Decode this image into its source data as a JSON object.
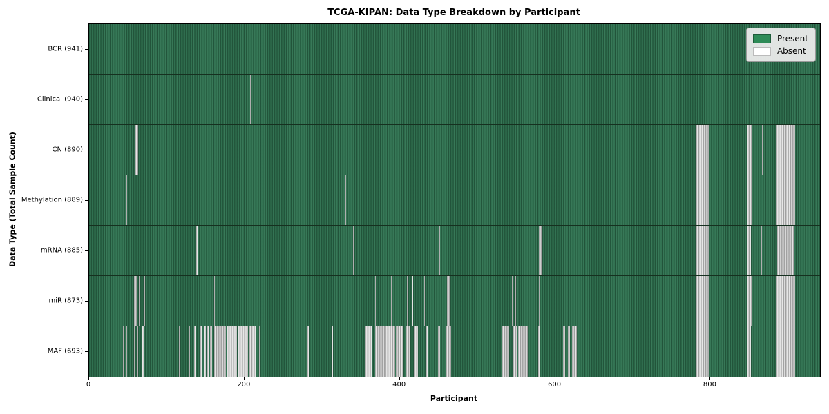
{
  "figure": {
    "background": "#ffffff"
  },
  "legend": {
    "entries": [
      {
        "label": "Present",
        "color": "#2e8b57",
        "border": "#1e5c3a"
      },
      {
        "label": "Absent",
        "color": "#ffffff",
        "border": "#bbbbbb"
      }
    ]
  },
  "chart_data": {
    "type": "heatmap",
    "title": "TCGA-KIPAN: Data Type Breakdown by Participant",
    "xlabel": "Participant",
    "ylabel": "Data Type (Total Sample Count)",
    "x_range": [
      0,
      941
    ],
    "x_ticks": [
      0,
      200,
      400,
      600,
      800
    ],
    "n_participants": 941,
    "grid": false,
    "legend_position": "upper right",
    "colors": {
      "present": "#2e8b57",
      "absent": "#ffffff"
    },
    "rows": [
      {
        "label": "BCR (941)",
        "data_type": "BCR",
        "sample_count": 941,
        "absent_ranges": []
      },
      {
        "label": "Clinical (940)",
        "data_type": "Clinical",
        "sample_count": 940,
        "absent_ranges": [
          [
            207,
            208
          ]
        ]
      },
      {
        "label": "CN (890)",
        "data_type": "CN",
        "sample_count": 890,
        "absent_ranges": [
          [
            60,
            63
          ],
          [
            617,
            618
          ],
          [
            782,
            799
          ],
          [
            847,
            854
          ],
          [
            866,
            867
          ],
          [
            885,
            909
          ]
        ]
      },
      {
        "label": "Methylation (889)",
        "data_type": "Methylation",
        "sample_count": 889,
        "absent_ranges": [
          [
            48,
            49
          ],
          [
            330,
            331
          ],
          [
            378,
            379
          ],
          [
            456,
            457
          ],
          [
            617,
            618
          ],
          [
            782,
            799
          ],
          [
            847,
            854
          ],
          [
            885,
            909
          ]
        ]
      },
      {
        "label": "mRNA (885)",
        "data_type": "mRNA",
        "sample_count": 885,
        "absent_ranges": [
          [
            65,
            66
          ],
          [
            133,
            134
          ],
          [
            138,
            140
          ],
          [
            340,
            341
          ],
          [
            451,
            452
          ],
          [
            579,
            583
          ],
          [
            782,
            799
          ],
          [
            847,
            852
          ],
          [
            865,
            866
          ],
          [
            886,
            907
          ]
        ]
      },
      {
        "label": "miR (873)",
        "data_type": "miR",
        "sample_count": 873,
        "absent_ranges": [
          [
            47,
            48
          ],
          [
            58,
            62
          ],
          [
            64,
            66
          ],
          [
            71,
            72
          ],
          [
            161,
            162
          ],
          [
            368,
            369
          ],
          [
            389,
            390
          ],
          [
            409,
            410
          ],
          [
            415,
            417
          ],
          [
            431,
            432
          ],
          [
            461,
            464
          ],
          [
            544,
            545
          ],
          [
            549,
            550
          ],
          [
            579,
            580
          ],
          [
            617,
            618
          ],
          [
            782,
            799
          ],
          [
            847,
            854
          ],
          [
            885,
            909
          ]
        ]
      },
      {
        "label": "MAF (693)",
        "data_type": "MAF",
        "sample_count": 693,
        "absent_ranges": [
          [
            44,
            45
          ],
          [
            48,
            49
          ],
          [
            58,
            60
          ],
          [
            62,
            63
          ],
          [
            65,
            66
          ],
          [
            68,
            70
          ],
          [
            116,
            117
          ],
          [
            129,
            130
          ],
          [
            135,
            138
          ],
          [
            143,
            146
          ],
          [
            148,
            150
          ],
          [
            152,
            154
          ],
          [
            156,
            158
          ],
          [
            161,
            176
          ],
          [
            177,
            190
          ],
          [
            191,
            205
          ],
          [
            206,
            214
          ],
          [
            219,
            220
          ],
          [
            281,
            283
          ],
          [
            312,
            314
          ],
          [
            356,
            365
          ],
          [
            368,
            381
          ],
          [
            382,
            394
          ],
          [
            395,
            404
          ],
          [
            408,
            413
          ],
          [
            419,
            423
          ],
          [
            434,
            436
          ],
          [
            449,
            452
          ],
          [
            460,
            466
          ],
          [
            532,
            541
          ],
          [
            546,
            551
          ],
          [
            552,
            566
          ],
          [
            578,
            580
          ],
          [
            610,
            613
          ],
          [
            616,
            619
          ],
          [
            622,
            628
          ],
          [
            782,
            799
          ],
          [
            847,
            852
          ],
          [
            885,
            909
          ]
        ]
      }
    ]
  }
}
